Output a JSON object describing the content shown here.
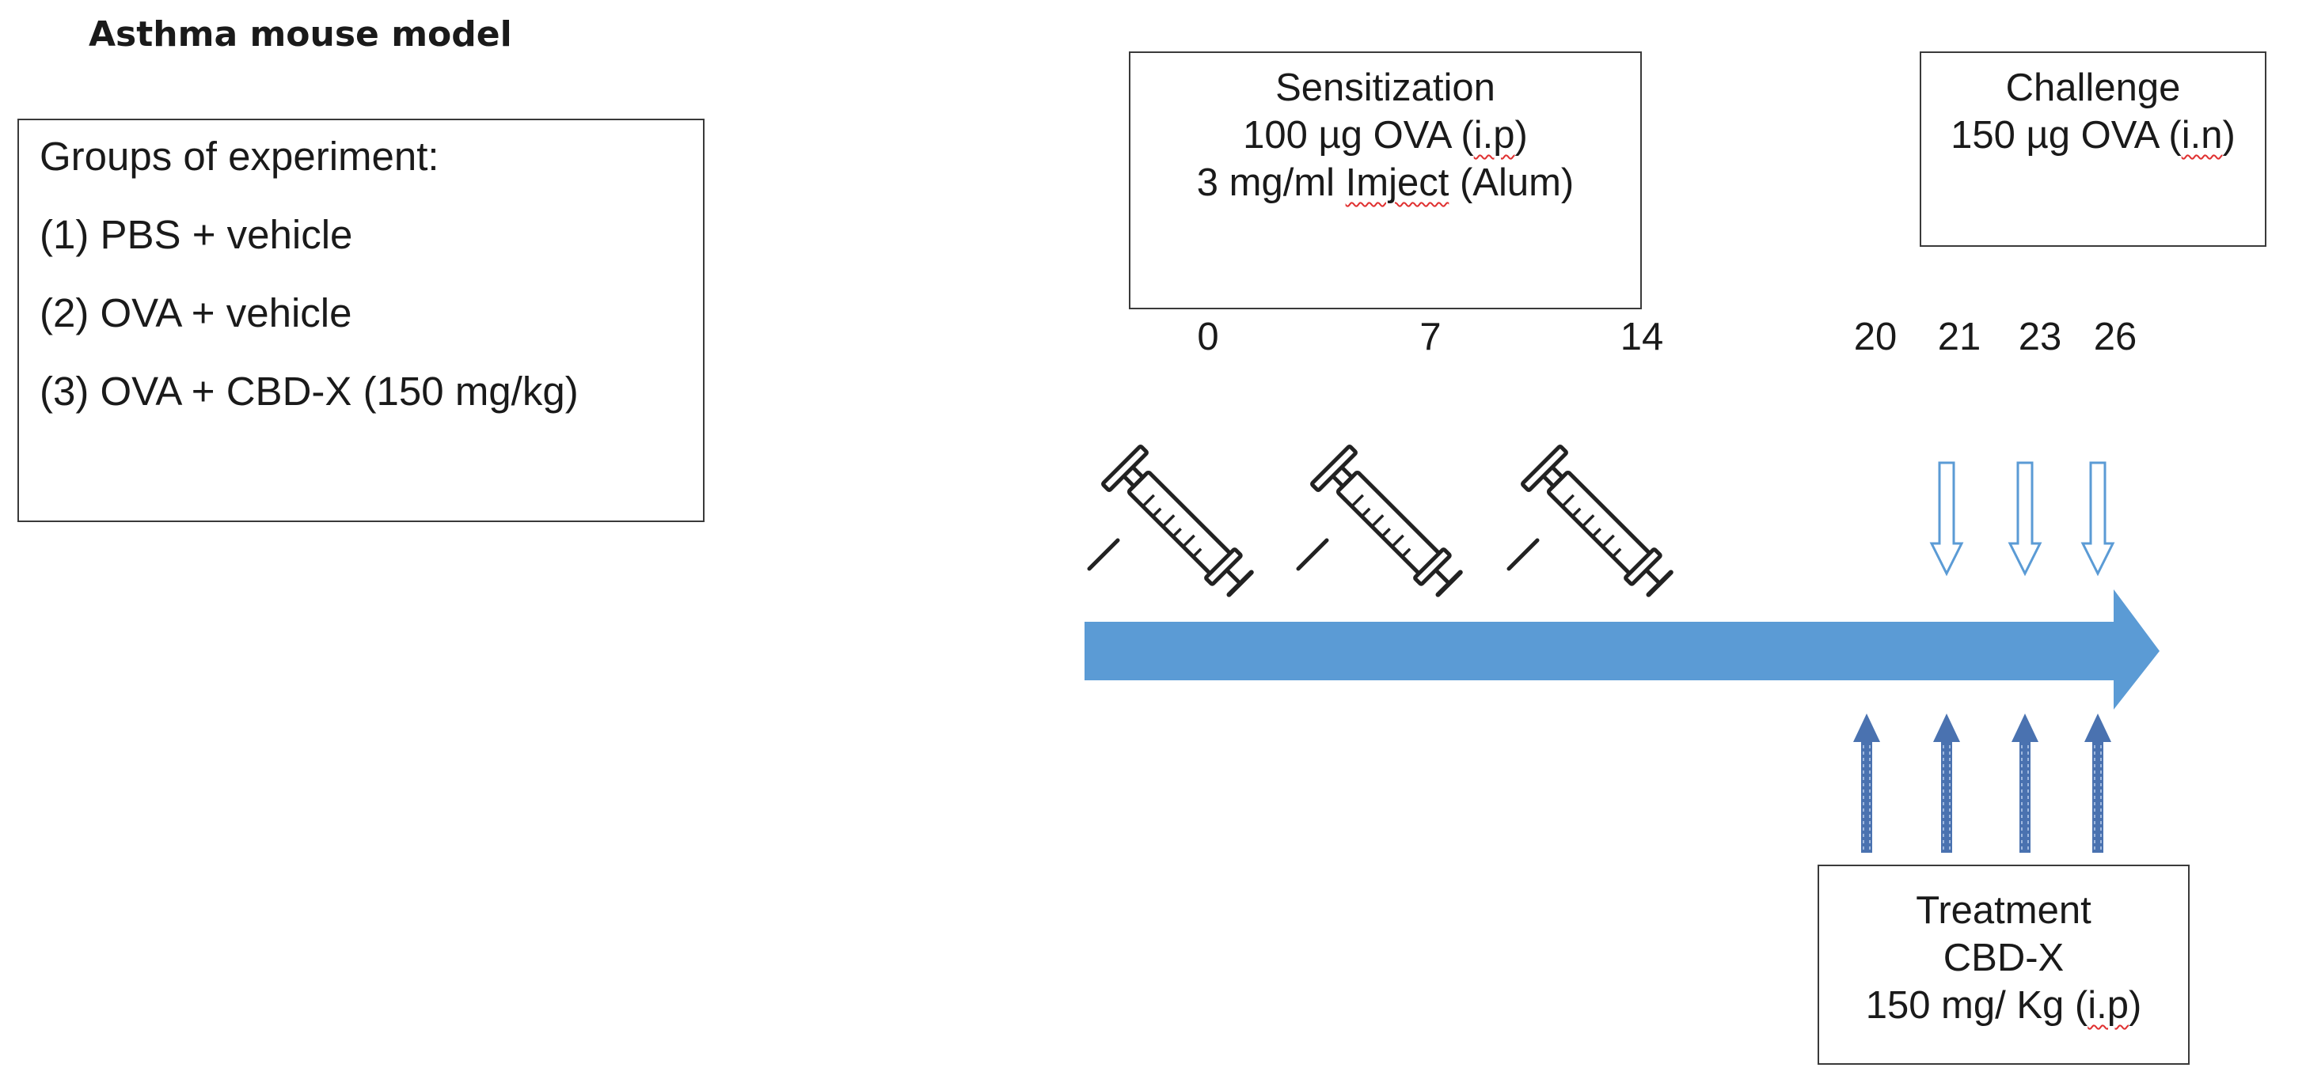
{
  "title": "Asthma mouse model",
  "groups": {
    "heading": "Groups of experiment:",
    "items": [
      "(1) PBS + vehicle",
      "(2) OVA + vehicle",
      "(3) OVA + CBD-X (150 mg/kg)"
    ]
  },
  "sensitization": {
    "title": "Sensitization",
    "line1_pre": "100 µg OVA (",
    "line1_mark": "i.p",
    "line1_post": ")",
    "line2_pre": "3 mg/ml ",
    "line2_mark": "Imject",
    "line2_post": " (Alum)"
  },
  "challenge": {
    "title": "Challenge",
    "line1_pre": "150 µg OVA (",
    "line1_mark": "i.n",
    "line1_post": ")"
  },
  "treatment": {
    "title": "Treatment",
    "line1": "CBD-X",
    "line2_pre": "150 mg/ Kg (",
    "line2_mark": "i.p",
    "line2_post": ")"
  },
  "timeline": {
    "days": [
      "0",
      "7",
      "14",
      "20",
      "21",
      "23",
      "26"
    ],
    "sensitization_days": [
      "0",
      "7",
      "14"
    ],
    "challenge_days": [
      "21",
      "23",
      "26"
    ],
    "treatment_days": [
      "20",
      "21",
      "23",
      "26"
    ]
  },
  "icons": {
    "injection": "syringe-icon",
    "challenge": "down-arrow-icon",
    "treatment": "up-arrow-icon",
    "timeline": "timeline-arrow"
  },
  "colors": {
    "timeline_arrow": "#5b9bd5",
    "arrow_outline": "#5b9bd5",
    "treatment_arrow": "#4a72b0",
    "box_border": "#3a3a3a",
    "spell_underline": "#e03030"
  }
}
